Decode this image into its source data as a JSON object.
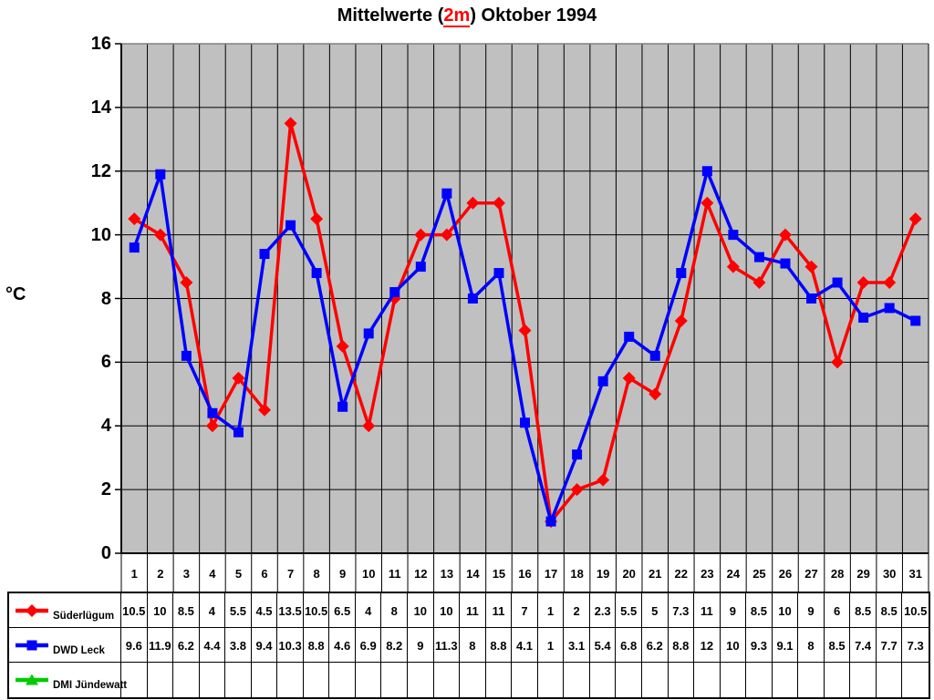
{
  "title": {
    "prefix": "Mittelwerte (",
    "highlight": "2m",
    "suffix": ") Oktober 1994",
    "highlight_color": "#FF0000"
  },
  "y_axis": {
    "label": "°C",
    "min": 0,
    "max": 16,
    "tick_step": 2,
    "ticks": [
      16,
      14,
      12,
      10,
      8,
      6,
      4,
      2,
      0
    ]
  },
  "x_axis": {
    "days": [
      1,
      2,
      3,
      4,
      5,
      6,
      7,
      8,
      9,
      10,
      11,
      12,
      13,
      14,
      15,
      16,
      17,
      18,
      19,
      20,
      21,
      22,
      23,
      24,
      25,
      26,
      27,
      28,
      29,
      30,
      31
    ]
  },
  "colors": {
    "plot_background": "#C0C0C0",
    "gridline": "#000000",
    "plot_top_border": "#808080",
    "axis": "#000000",
    "table_border": "#000000",
    "text": "#000000"
  },
  "chart_data": {
    "type": "line",
    "title": "Mittelwerte (2m) Oktober 1994",
    "xlabel": "",
    "ylabel": "°C",
    "ylim": [
      0,
      16
    ],
    "ytick_step": 2,
    "grid": true,
    "legend_position": "table-left",
    "x": [
      1,
      2,
      3,
      4,
      5,
      6,
      7,
      8,
      9,
      10,
      11,
      12,
      13,
      14,
      15,
      16,
      17,
      18,
      19,
      20,
      21,
      22,
      23,
      24,
      25,
      26,
      27,
      28,
      29,
      30,
      31
    ],
    "series": [
      {
        "name": "Süderlügum",
        "slug": "suederluegum",
        "color": "#FF0000",
        "marker": "diamond",
        "values": [
          10.5,
          10,
          8.5,
          4,
          5.5,
          4.5,
          13.5,
          10.5,
          6.5,
          4,
          8,
          10,
          10,
          11,
          11,
          7,
          1,
          2,
          2.3,
          5.5,
          5,
          7.3,
          11,
          9,
          8.5,
          10,
          9,
          6,
          8.5,
          8.5,
          10.5
        ]
      },
      {
        "name": "DWD Leck",
        "slug": "dwd-leck",
        "color": "#0000FF",
        "marker": "square",
        "values": [
          9.6,
          11.9,
          6.2,
          4.4,
          3.8,
          9.4,
          10.3,
          8.8,
          4.6,
          6.9,
          8.2,
          9,
          11.3,
          8,
          8.8,
          4.1,
          1,
          3.1,
          5.4,
          6.8,
          6.2,
          8.8,
          12,
          10,
          9.3,
          9.1,
          8,
          8.5,
          7.4,
          7.7,
          7.3
        ]
      },
      {
        "name": "DMI Jündewatt",
        "slug": "dmi-juendewatt",
        "color": "#00CC00",
        "marker": "triangle",
        "values": []
      }
    ]
  }
}
